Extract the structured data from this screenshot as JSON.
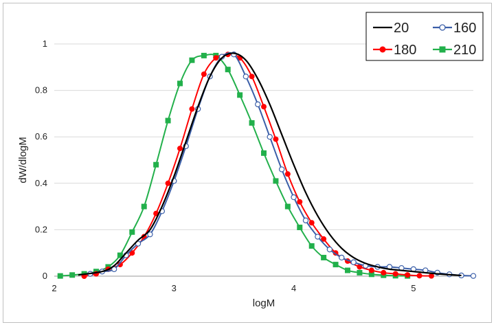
{
  "chart_data": {
    "type": "line",
    "title": "",
    "xlabel": "logM",
    "ylabel": "dW/dlogM",
    "xlim": [
      2,
      5.5
    ],
    "ylim": [
      0,
      1
    ],
    "xticks": [
      "2",
      "3",
      "4",
      "5"
    ],
    "yticks": [
      "0",
      "0.2",
      "0.4",
      "0.6",
      "0.8",
      "1"
    ],
    "legend_position": "top-right",
    "series": [
      {
        "name": "20",
        "color": "#000000",
        "marker": "none",
        "x": [
          2.2,
          2.4,
          2.5,
          2.6,
          2.7,
          2.8,
          2.9,
          3.0,
          3.1,
          3.2,
          3.3,
          3.4,
          3.5,
          3.6,
          3.7,
          3.8,
          3.9,
          4.0,
          4.1,
          4.2,
          4.3,
          4.4,
          4.5,
          4.6,
          4.7,
          4.8,
          5.0,
          5.2,
          5.4
        ],
        "values": [
          0.005,
          0.02,
          0.045,
          0.1,
          0.155,
          0.2,
          0.3,
          0.43,
          0.58,
          0.73,
          0.86,
          0.94,
          0.96,
          0.93,
          0.85,
          0.74,
          0.61,
          0.48,
          0.36,
          0.26,
          0.18,
          0.12,
          0.08,
          0.055,
          0.04,
          0.03,
          0.02,
          0.01,
          0.003
        ]
      },
      {
        "name": "160",
        "color": "#3a5ea8",
        "marker": "open-circle",
        "x": [
          2.3,
          2.4,
          2.5,
          2.6,
          2.7,
          2.8,
          2.9,
          3.0,
          3.1,
          3.2,
          3.3,
          3.4,
          3.5,
          3.6,
          3.7,
          3.8,
          3.9,
          4.0,
          4.1,
          4.2,
          4.3,
          4.4,
          4.5,
          4.6,
          4.7,
          4.8,
          4.9,
          5.0,
          5.1,
          5.2,
          5.3,
          5.4,
          5.5
        ],
        "values": [
          0.01,
          0.02,
          0.03,
          0.09,
          0.14,
          0.18,
          0.28,
          0.41,
          0.56,
          0.72,
          0.86,
          0.945,
          0.955,
          0.86,
          0.74,
          0.6,
          0.46,
          0.34,
          0.24,
          0.17,
          0.115,
          0.08,
          0.06,
          0.045,
          0.04,
          0.04,
          0.035,
          0.03,
          0.025,
          0.015,
          0.008,
          0.003,
          0.001
        ]
      },
      {
        "name": "180",
        "color": "#ff0000",
        "marker": "filled-circle",
        "x": [
          2.25,
          2.35,
          2.45,
          2.55,
          2.65,
          2.75,
          2.85,
          2.95,
          3.05,
          3.15,
          3.25,
          3.35,
          3.45,
          3.55,
          3.65,
          3.75,
          3.85,
          3.95,
          4.05,
          4.15,
          4.25,
          4.35,
          4.45,
          4.55,
          4.65,
          4.75,
          4.85,
          4.95,
          5.05,
          5.15
        ],
        "values": [
          0.0,
          0.01,
          0.03,
          0.05,
          0.1,
          0.17,
          0.27,
          0.4,
          0.55,
          0.72,
          0.87,
          0.94,
          0.955,
          0.94,
          0.86,
          0.73,
          0.59,
          0.44,
          0.32,
          0.23,
          0.16,
          0.1,
          0.065,
          0.04,
          0.025,
          0.015,
          0.01,
          0.005,
          0.002,
          0.001
        ]
      },
      {
        "name": "210",
        "color": "#22b04b",
        "marker": "filled-square",
        "x": [
          2.05,
          2.15,
          2.25,
          2.35,
          2.45,
          2.55,
          2.65,
          2.75,
          2.85,
          2.95,
          3.05,
          3.15,
          3.25,
          3.35,
          3.45,
          3.55,
          3.65,
          3.75,
          3.85,
          3.95,
          4.05,
          4.15,
          4.25,
          4.35,
          4.45,
          4.55,
          4.65,
          4.75,
          4.85,
          4.95
        ],
        "values": [
          0.001,
          0.005,
          0.01,
          0.02,
          0.04,
          0.09,
          0.19,
          0.3,
          0.48,
          0.67,
          0.83,
          0.93,
          0.95,
          0.95,
          0.89,
          0.78,
          0.66,
          0.53,
          0.41,
          0.3,
          0.21,
          0.13,
          0.08,
          0.05,
          0.025,
          0.015,
          0.008,
          0.004,
          0.002,
          0.001
        ]
      }
    ]
  }
}
